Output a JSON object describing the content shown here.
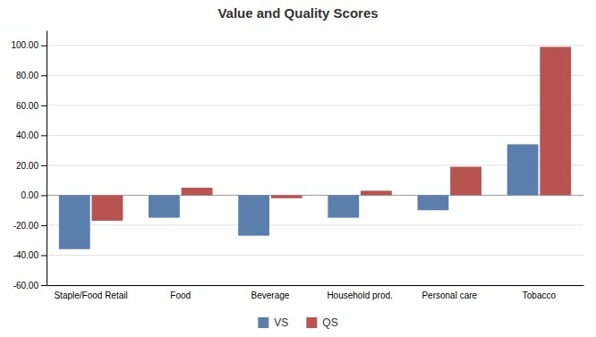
{
  "chart_data": {
    "type": "bar",
    "title": "Value and Quality Scores",
    "categories": [
      "Staple/Food Retail",
      "Food",
      "Beverage",
      "Household prod.",
      "Personal care",
      "Tobacco"
    ],
    "series": [
      {
        "name": "VS",
        "color": "#5b7fad",
        "values": [
          -36,
          -15,
          -27,
          -15,
          -10,
          34
        ]
      },
      {
        "name": "QS",
        "color": "#b85450",
        "values": [
          -17,
          5,
          -2,
          3,
          19,
          99
        ]
      }
    ],
    "ylim": [
      -60,
      110
    ],
    "yticks": [
      {
        "value": -60,
        "label": "-60.00"
      },
      {
        "value": -40,
        "label": "-40.00"
      },
      {
        "value": -20,
        "label": "-20.00"
      },
      {
        "value": 0,
        "label": "0.00"
      },
      {
        "value": 20,
        "label": "20.00"
      },
      {
        "value": 40,
        "label": "40.00"
      },
      {
        "value": 60,
        "label": "60.00"
      },
      {
        "value": 80,
        "label": "80.00"
      },
      {
        "value": 100,
        "label": "100.00"
      }
    ],
    "grid": true,
    "legend": "bottom"
  }
}
